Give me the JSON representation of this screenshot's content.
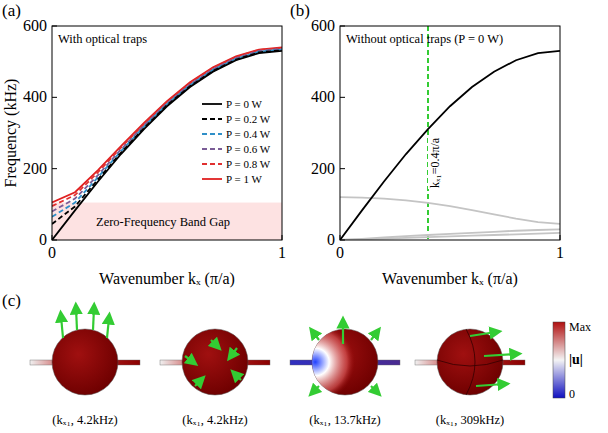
{
  "chart_data": [
    {
      "type": "line",
      "panel": "(a)",
      "title": "With optical traps",
      "xlabel": "Wavenumber kₓ (π/a)",
      "ylabel": "Frequency (kHz)",
      "x": [
        0,
        0.1,
        0.2,
        0.3,
        0.4,
        0.5,
        0.6,
        0.7,
        0.8,
        0.9,
        1
      ],
      "xlim": [
        0,
        1
      ],
      "xticks": [
        0,
        1
      ],
      "ylim": [
        0,
        600
      ],
      "yticks": [
        0,
        200,
        400,
        600
      ],
      "legend": "right",
      "band": {
        "text": "Zero-Frequency Band Gap",
        "range": [
          0,
          105
        ]
      },
      "series": [
        {
          "name": "P = 0 W",
          "color": "#000000",
          "line_style": "solid",
          "values": [
            0,
            83,
            164,
            241,
            311,
            375,
            429,
            472,
            504,
            524,
            530
          ]
        },
        {
          "name": "P = 0.2 W",
          "color": "#000000",
          "line_style": "dashed",
          "values": [
            45,
            94,
            170,
            245,
            314,
            378,
            431,
            474,
            506,
            526,
            532
          ]
        },
        {
          "name": "P = 0.4 W",
          "color": "#2f8fc8",
          "line_style": "dashed",
          "values": [
            65,
            105,
            176,
            249,
            318,
            381,
            434,
            477,
            508,
            528,
            534
          ]
        },
        {
          "name": "P = 0.6 W",
          "color": "#7a5c96",
          "line_style": "dashed",
          "values": [
            80,
            116,
            182,
            254,
            321,
            383,
            436,
            479,
            510,
            530,
            536
          ]
        },
        {
          "name": "P = 0.8 W",
          "color": "#e03030",
          "line_style": "dashed",
          "values": [
            95,
            126,
            190,
            259,
            325,
            387,
            439,
            482,
            513,
            533,
            538
          ]
        },
        {
          "name": "P = 1 W",
          "color": "#e02020",
          "line_style": "solid",
          "values": [
            105,
            134,
            196,
            263,
            328,
            389,
            442,
            484,
            515,
            534,
            540
          ]
        }
      ]
    },
    {
      "type": "line",
      "panel": "(b)",
      "title": "Without optical traps (P = 0 W)",
      "xlabel": "Wavenumber kₓ (π/a)",
      "x": [
        0,
        0.1,
        0.2,
        0.3,
        0.4,
        0.5,
        0.6,
        0.7,
        0.8,
        0.9,
        1
      ],
      "xlim": [
        0,
        1
      ],
      "xticks": [
        0,
        1
      ],
      "ylim": [
        0,
        600
      ],
      "yticks": [
        0,
        200,
        400,
        600
      ],
      "markers": [
        {
          "x": 0.4,
          "text": "kₓ₁=0.4π/a",
          "color": "#33cc33"
        }
      ],
      "series": [
        {
          "color": "#000000",
          "line_style": "solid",
          "values": [
            0,
            83,
            164,
            241,
            311,
            375,
            429,
            472,
            504,
            524,
            530
          ]
        },
        {
          "color": "#c4c4c4",
          "line_style": "solid",
          "values": [
            120,
            119,
            116,
            111,
            104,
            95,
            84,
            72,
            60,
            50,
            45
          ]
        },
        {
          "color": "#c4c4c4",
          "line_style": "solid",
          "values": [
            0,
            3,
            7,
            11,
            14,
            17,
            20,
            23,
            26,
            28,
            30
          ]
        },
        {
          "color": "#c4c4c4",
          "line_style": "solid",
          "values": [
            0,
            2,
            4,
            6,
            8,
            10,
            12,
            14,
            16,
            18,
            20
          ]
        }
      ]
    }
  ],
  "panel_c": {
    "panel": "(c)",
    "modes": [
      {
        "label": "(kₓ₁,  4.2kHz)"
      },
      {
        "label": "(kₓ₁,  4.2kHz)"
      },
      {
        "label": "(kₓ₁,  13.7kHz)"
      },
      {
        "label": "(kₓ₁,  309kHz)"
      }
    ],
    "colorbar": {
      "title": "|u|",
      "max_label": "Max",
      "min_label": "0"
    }
  }
}
